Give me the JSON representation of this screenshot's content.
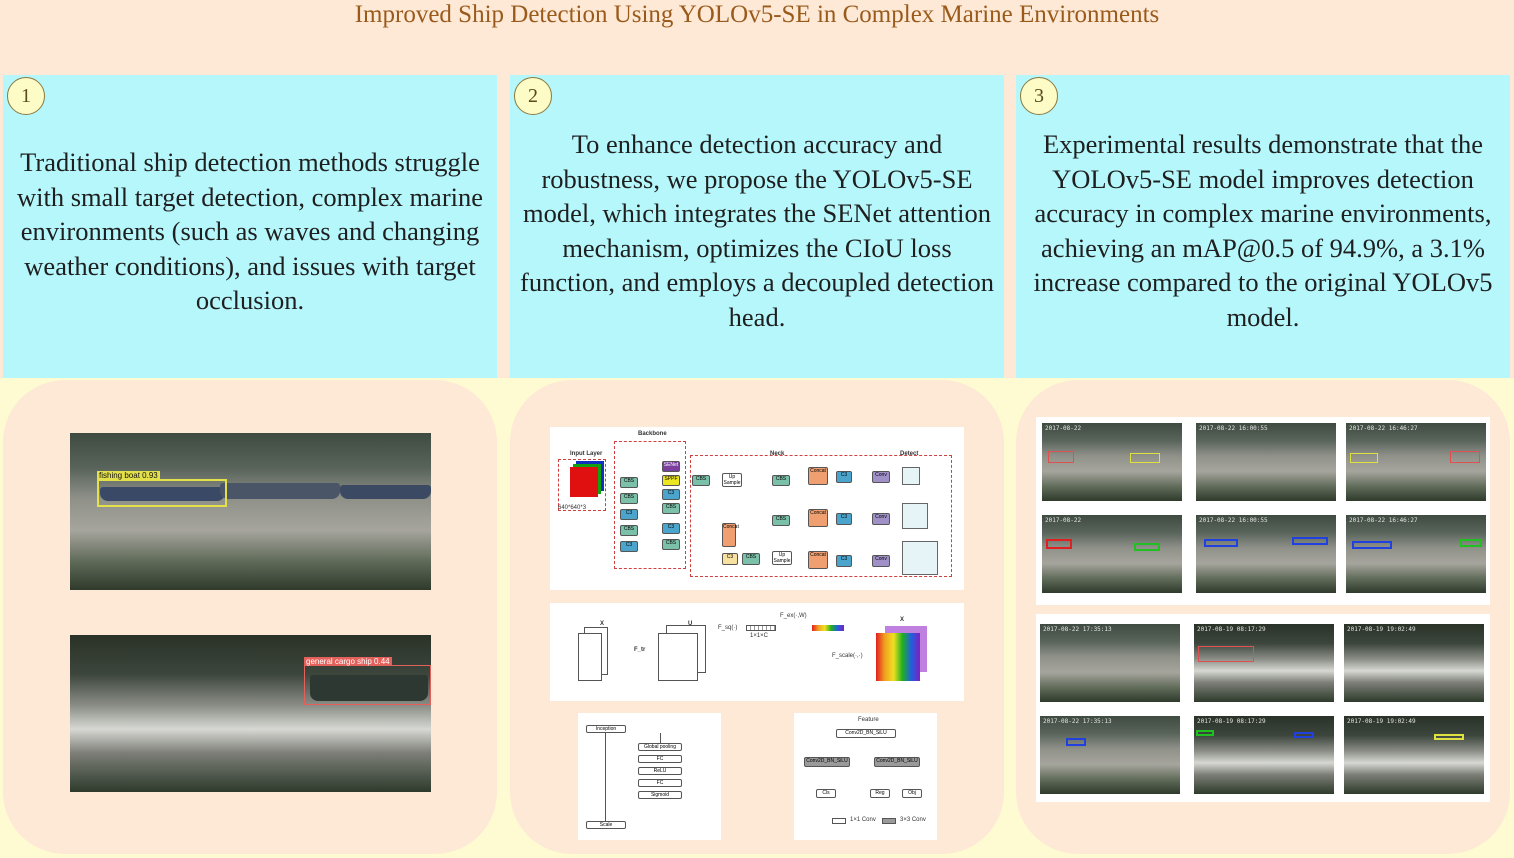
{
  "header": {
    "title": "Improved Ship Detection Using YOLOv5-SE in Complex Marine Environments"
  },
  "panels": [
    {
      "number": "1",
      "text": "Traditional ship detection methods struggle with small target detection, complex marine environments (such as waves and changing weather conditions), and issues with target occlusion."
    },
    {
      "number": "2",
      "text": "To enhance detection accuracy and robustness, we propose the YOLOv5-SE model, which integrates the SENet attention mechanism, optimizes the CIoU loss function, and employs a decoupled detection head."
    },
    {
      "number": "3",
      "text": "Experimental results demonstrate that the YOLOv5-SE model improves detection accuracy in complex marine environments, achieving an mAP@0.5 of 94.9%, a 3.1% increase compared to the original YOLOv5 model."
    }
  ],
  "figures": {
    "detection_1": {
      "label": "fishing boat 0.93"
    },
    "detection_2": {
      "label": "general cargo ship 0.44"
    },
    "architecture": {
      "sections": [
        "Input Layer",
        "Backbone",
        "Neck",
        "Detect"
      ],
      "input_size": "640*640*3",
      "modules": [
        "CBS",
        "C3",
        "SPPF",
        "SENet",
        "Concat",
        "Up Sample",
        "Conv"
      ]
    },
    "senet": {
      "labels": [
        "X",
        "U",
        "F_tr",
        "F_sq(·)",
        "F_ex(·,W)",
        "F_scale(·,·)",
        "1×1×C",
        "H",
        "W",
        "C"
      ]
    },
    "se_block": {
      "steps": [
        "Inception",
        "Global pooling",
        "FC",
        "ReLU",
        "FC",
        "Sigmoid",
        "Scale"
      ]
    },
    "decoupled_head": {
      "nodes": [
        "Feature",
        "Conv2D_BN_SiLU",
        "Conv2D_BN_SiLU",
        "Conv2D_BN_SiLU",
        "Cls",
        "Reg",
        "Obj"
      ],
      "legend": [
        "1×1 Conv",
        "3×3 Conv"
      ]
    },
    "results_grid_1": {
      "timestamps": [
        "2017-08-22",
        "2017-08-22 16:00:55",
        "2017-08-22 16:46:27"
      ]
    },
    "results_grid_2": {
      "timestamps": [
        "2017-08-22 17:35:13",
        "2017-08-19 08:17:29",
        "2017-08-19 19:02:49"
      ]
    }
  },
  "colors": {
    "background": "#fde9d6",
    "title": "#9a5a1c",
    "panel": "#b5f7fb",
    "band": "#fefbd2",
    "badge": "#fdfbc6"
  }
}
